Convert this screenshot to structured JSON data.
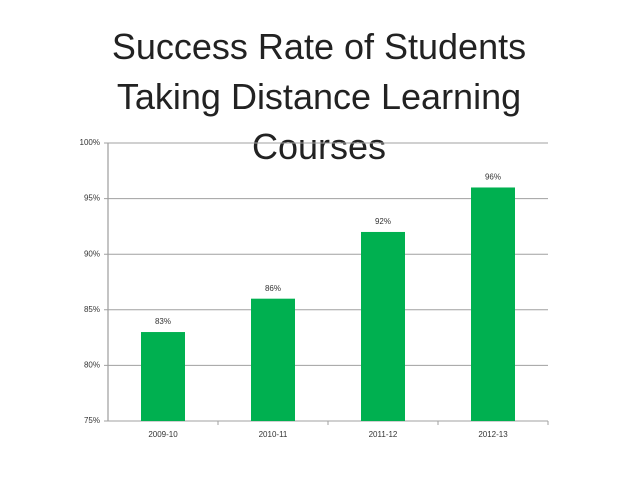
{
  "chart_data": {
    "type": "bar",
    "title": "Success Rate of Students Taking Distance Learning Courses",
    "categories": [
      "2009-10",
      "2010-11",
      "2011-12",
      "2012-13"
    ],
    "values": [
      83,
      86,
      92,
      96
    ],
    "value_labels": [
      "83%",
      "86%",
      "92%",
      "96%"
    ],
    "color": "#00b050",
    "ylim": [
      75,
      100
    ],
    "yticks": [
      {
        "value": 75,
        "label": "75%"
      },
      {
        "value": 80,
        "label": "80%"
      },
      {
        "value": 85,
        "label": "85%"
      },
      {
        "value": 90,
        "label": "90%"
      },
      {
        "value": 95,
        "label": "95%"
      },
      {
        "value": 100,
        "label": "100%"
      }
    ],
    "grid": true
  }
}
